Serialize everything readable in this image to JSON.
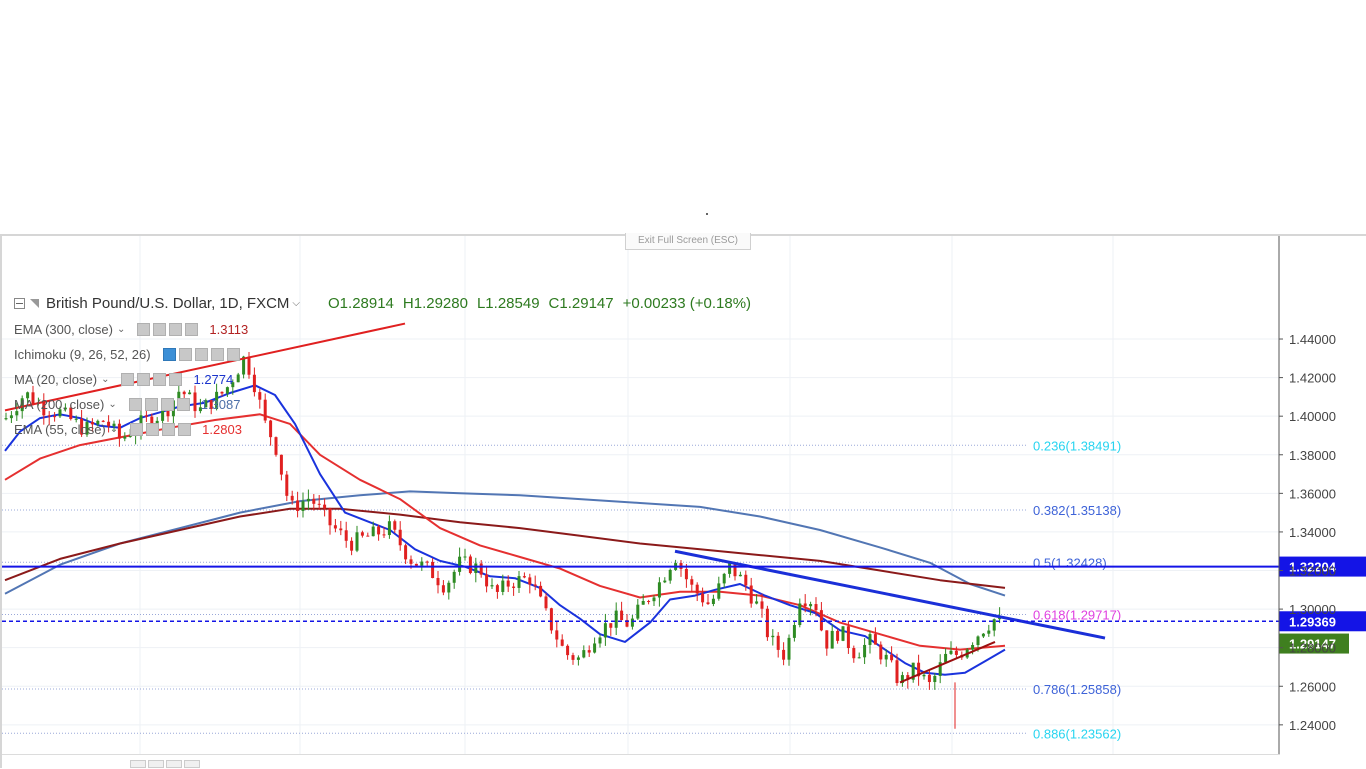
{
  "header": {
    "symbol": "British Pound/U.S. Dollar, 1D, FXCM",
    "open": "O1.28914",
    "high": "H1.29280",
    "low": "L1.28549",
    "close": "C1.29147",
    "change": "+0.00233 (+0.18%)",
    "exit_fullscreen": "Exit Full Screen (ESC)"
  },
  "indicators": [
    {
      "label": "EMA (300, close)",
      "value": "1.3113",
      "color": "#b22222"
    },
    {
      "label": "Ichimoku (9, 26, 52, 26)",
      "value": "",
      "color": "#555555"
    },
    {
      "label": "MA (20, close)",
      "value": "1.2774",
      "color": "#1a33cc"
    },
    {
      "label": "MA (200, close)",
      "value": "1.3087",
      "color": "#4c6fa8"
    },
    {
      "label": "EMA (55, close)",
      "value": "1.2803",
      "color": "#e53030"
    }
  ],
  "colors": {
    "bull": "#2e8b23",
    "bear": "#e02020",
    "ma20": "#1a33dd",
    "ema55": "#e53030",
    "ma200": "#5276b4",
    "ema300": "#8b1a1a",
    "trend_red": "#e02020",
    "trend_blue": "#1a2fd8",
    "fib_text_cyan": "#27d4f0",
    "fib_text_blue": "#3e63d8",
    "fib_text_magenta": "#e040e0",
    "label_blue": "#1414e6",
    "label_green": "#3f7f1f"
  },
  "chart_data": {
    "type": "line",
    "symbol": "GBPUSD",
    "timeframe": "1D",
    "ylim": [
      1.228,
      1.468
    ],
    "y_ticks": [
      "1.44000",
      "1.42000",
      "1.40000",
      "1.38000",
      "1.36000",
      "1.34000",
      "1.32000",
      "1.30000",
      "1.28000",
      "1.26000",
      "1.24000"
    ],
    "price_path": [
      [
        0,
        1.395
      ],
      [
        25,
        1.412
      ],
      [
        45,
        1.404
      ],
      [
        60,
        1.402
      ],
      [
        85,
        1.393
      ],
      [
        105,
        1.398
      ],
      [
        120,
        1.388
      ],
      [
        140,
        1.396
      ],
      [
        165,
        1.402
      ],
      [
        180,
        1.414
      ],
      [
        200,
        1.403
      ],
      [
        225,
        1.413
      ],
      [
        245,
        1.431
      ],
      [
        255,
        1.416
      ],
      [
        265,
        1.396
      ],
      [
        275,
        1.386
      ],
      [
        290,
        1.352
      ],
      [
        310,
        1.358
      ],
      [
        330,
        1.344
      ],
      [
        350,
        1.334
      ],
      [
        370,
        1.338
      ],
      [
        390,
        1.342
      ],
      [
        410,
        1.326
      ],
      [
        430,
        1.32
      ],
      [
        445,
        1.312
      ],
      [
        460,
        1.324
      ],
      [
        480,
        1.321
      ],
      [
        495,
        1.307
      ],
      [
        510,
        1.314
      ],
      [
        530,
        1.316
      ],
      [
        545,
        1.298
      ],
      [
        565,
        1.277
      ],
      [
        580,
        1.274
      ],
      [
        595,
        1.287
      ],
      [
        615,
        1.295
      ],
      [
        630,
        1.292
      ],
      [
        645,
        1.304
      ],
      [
        660,
        1.314
      ],
      [
        675,
        1.328
      ],
      [
        690,
        1.312
      ],
      [
        710,
        1.302
      ],
      [
        730,
        1.322
      ],
      [
        745,
        1.313
      ],
      [
        760,
        1.299
      ],
      [
        770,
        1.284
      ],
      [
        785,
        1.276
      ],
      [
        800,
        1.307
      ],
      [
        815,
        1.304
      ],
      [
        825,
        1.282
      ],
      [
        840,
        1.289
      ],
      [
        855,
        1.277
      ],
      [
        870,
        1.283
      ],
      [
        885,
        1.275
      ],
      [
        900,
        1.262
      ],
      [
        915,
        1.269
      ],
      [
        930,
        1.26
      ],
      [
        945,
        1.275
      ],
      [
        960,
        1.277
      ],
      [
        970,
        1.283
      ],
      [
        985,
        1.291
      ],
      [
        995,
        1.295
      ],
      [
        1005,
        1.291
      ]
    ],
    "ma20": [
      [
        5,
        1.382
      ],
      [
        20,
        1.392
      ],
      [
        40,
        1.399
      ],
      [
        60,
        1.401
      ],
      [
        80,
        1.399
      ],
      [
        100,
        1.395
      ],
      [
        120,
        1.394
      ],
      [
        140,
        1.399
      ],
      [
        160,
        1.402
      ],
      [
        180,
        1.405
      ],
      [
        205,
        1.407
      ],
      [
        230,
        1.412
      ],
      [
        255,
        1.416
      ],
      [
        275,
        1.411
      ],
      [
        295,
        1.396
      ],
      [
        320,
        1.37
      ],
      [
        345,
        1.35
      ],
      [
        370,
        1.345
      ],
      [
        390,
        1.341
      ],
      [
        415,
        1.331
      ],
      [
        440,
        1.325
      ],
      [
        465,
        1.322
      ],
      [
        490,
        1.317
      ],
      [
        515,
        1.316
      ],
      [
        540,
        1.311
      ],
      [
        560,
        1.302
      ],
      [
        580,
        1.295
      ],
      [
        600,
        1.287
      ],
      [
        625,
        1.283
      ],
      [
        650,
        1.293
      ],
      [
        670,
        1.305
      ],
      [
        695,
        1.307
      ],
      [
        715,
        1.31
      ],
      [
        740,
        1.313
      ],
      [
        765,
        1.307
      ],
      [
        790,
        1.302
      ],
      [
        815,
        1.298
      ],
      [
        840,
        1.289
      ],
      [
        865,
        1.286
      ],
      [
        885,
        1.279
      ],
      [
        905,
        1.272
      ],
      [
        925,
        1.267
      ],
      [
        945,
        1.266
      ],
      [
        965,
        1.267
      ],
      [
        985,
        1.273
      ],
      [
        1005,
        1.279
      ]
    ],
    "ema55": [
      [
        5,
        1.367
      ],
      [
        40,
        1.378
      ],
      [
        80,
        1.385
      ],
      [
        120,
        1.389
      ],
      [
        170,
        1.394
      ],
      [
        215,
        1.398
      ],
      [
        260,
        1.401
      ],
      [
        290,
        1.396
      ],
      [
        320,
        1.38
      ],
      [
        360,
        1.367
      ],
      [
        400,
        1.357
      ],
      [
        440,
        1.342
      ],
      [
        480,
        1.333
      ],
      [
        520,
        1.327
      ],
      [
        560,
        1.321
      ],
      [
        600,
        1.312
      ],
      [
        640,
        1.306
      ],
      [
        680,
        1.309
      ],
      [
        720,
        1.309
      ],
      [
        760,
        1.307
      ],
      [
        800,
        1.302
      ],
      [
        840,
        1.293
      ],
      [
        880,
        1.287
      ],
      [
        920,
        1.281
      ],
      [
        960,
        1.279
      ],
      [
        1005,
        1.281
      ]
    ],
    "ma200": [
      [
        5,
        1.308
      ],
      [
        60,
        1.323
      ],
      [
        120,
        1.334
      ],
      [
        180,
        1.342
      ],
      [
        240,
        1.35
      ],
      [
        300,
        1.356
      ],
      [
        360,
        1.359
      ],
      [
        410,
        1.361
      ],
      [
        460,
        1.36
      ],
      [
        520,
        1.359
      ],
      [
        580,
        1.357
      ],
      [
        640,
        1.355
      ],
      [
        700,
        1.353
      ],
      [
        760,
        1.348
      ],
      [
        820,
        1.341
      ],
      [
        880,
        1.332
      ],
      [
        930,
        1.324
      ],
      [
        970,
        1.313
      ],
      [
        1005,
        1.307
      ]
    ],
    "ema300": [
      [
        5,
        1.315
      ],
      [
        60,
        1.326
      ],
      [
        120,
        1.334
      ],
      [
        180,
        1.341
      ],
      [
        240,
        1.348
      ],
      [
        290,
        1.352
      ],
      [
        340,
        1.352
      ],
      [
        400,
        1.349
      ],
      [
        460,
        1.345
      ],
      [
        520,
        1.342
      ],
      [
        580,
        1.338
      ],
      [
        640,
        1.334
      ],
      [
        700,
        1.331
      ],
      [
        760,
        1.328
      ],
      [
        820,
        1.325
      ],
      [
        880,
        1.32
      ],
      [
        940,
        1.315
      ],
      [
        1005,
        1.311
      ]
    ],
    "trendline_red_upper": [
      [
        5,
        1.403
      ],
      [
        405,
        1.448
      ]
    ],
    "trendline_red_lower": [
      [
        900,
        1.262
      ],
      [
        995,
        1.283
      ]
    ],
    "trendline_blue": [
      [
        675,
        1.33
      ],
      [
        1105,
        1.285
      ]
    ],
    "horizontal_levels": [
      {
        "price": 1.32204,
        "label": "1.32204",
        "style": "solid",
        "color": "#1414e6"
      },
      {
        "price": 1.29369,
        "label": "1.29369",
        "style": "dashed",
        "color": "#1414e6"
      }
    ],
    "last_price_label": {
      "price": 1.29147,
      "label": "1.29147",
      "color": "#3f7f1f"
    },
    "fibonacci": [
      {
        "label": "0.236(1.38491)",
        "price": 1.38491,
        "color": "#27d4f0"
      },
      {
        "label": "0.382(1.35138)",
        "price": 1.35138,
        "color": "#3e63d8"
      },
      {
        "label": "0.5(1.32428)",
        "price": 1.32428,
        "color": "#3e63d8"
      },
      {
        "label": "0.618(1.29717)",
        "price": 1.29717,
        "color": "#e040e0"
      },
      {
        "label": "0.786(1.25858)",
        "price": 1.25858,
        "color": "#3e63d8"
      },
      {
        "label": "0.886(1.23562)",
        "price": 1.23562,
        "color": "#27d4f0"
      }
    ]
  }
}
